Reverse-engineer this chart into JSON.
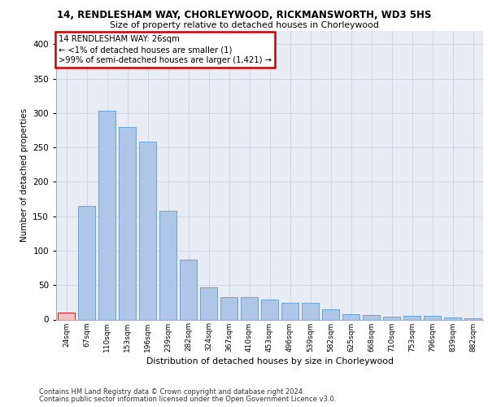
{
  "title1": "14, RENDLESHAM WAY, CHORLEYWOOD, RICKMANSWORTH, WD3 5HS",
  "title2": "Size of property relative to detached houses in Chorleywood",
  "xlabel": "Distribution of detached houses by size in Chorleywood",
  "ylabel": "Number of detached properties",
  "categories": [
    "24sqm",
    "67sqm",
    "110sqm",
    "153sqm",
    "196sqm",
    "239sqm",
    "282sqm",
    "324sqm",
    "367sqm",
    "410sqm",
    "453sqm",
    "496sqm",
    "539sqm",
    "582sqm",
    "625sqm",
    "668sqm",
    "710sqm",
    "753sqm",
    "796sqm",
    "839sqm",
    "882sqm"
  ],
  "values": [
    10,
    165,
    303,
    280,
    258,
    158,
    87,
    47,
    32,
    32,
    29,
    24,
    24,
    15,
    8,
    7,
    4,
    5,
    5,
    3,
    2
  ],
  "bar_color": "#aec6e8",
  "bar_edge_color": "#5b9bd5",
  "highlight_bar_index": 0,
  "highlight_bar_color": "#f4c2c2",
  "highlight_bar_edge_color": "#cc0000",
  "annotation_box_text": "14 RENDLESHAM WAY: 26sqm\n← <1% of detached houses are smaller (1)\n>99% of semi-detached houses are larger (1,421) →",
  "annotation_box_edge_color": "#cc0000",
  "ylim": [
    0,
    420
  ],
  "yticks": [
    0,
    50,
    100,
    150,
    200,
    250,
    300,
    350,
    400
  ],
  "grid_color": "#c8d4e8",
  "background_color": "#e8edf5",
  "footer1": "Contains HM Land Registry data © Crown copyright and database right 2024.",
  "footer2": "Contains public sector information licensed under the Open Government Licence v3.0."
}
